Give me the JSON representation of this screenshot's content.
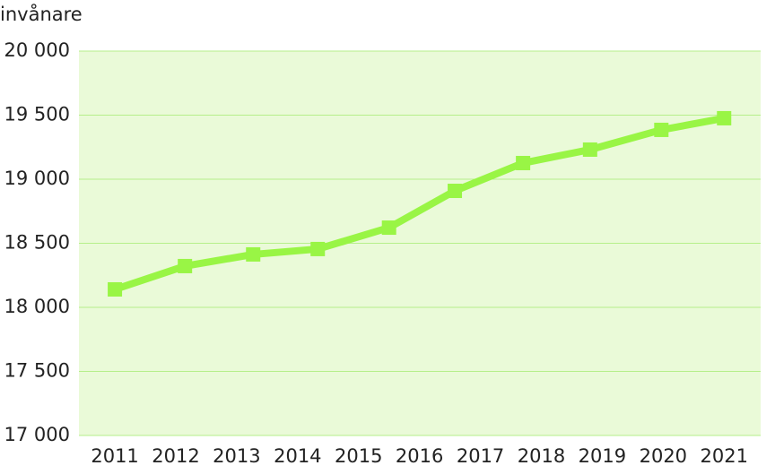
{
  "chart_data": {
    "type": "line",
    "y_label": "invånare",
    "x": [
      2011.0,
      2012.15,
      2013.27,
      2014.33,
      2015.5,
      2016.58,
      2017.7,
      2018.8,
      2019.97,
      2021.0
    ],
    "series": [
      {
        "color": "#99f545",
        "values": [
          18140,
          18322,
          18413,
          18455,
          18622,
          18909,
          19126,
          19231,
          19385,
          19476
        ]
      }
    ],
    "xlim": [
      2010.41,
      2021.6
    ],
    "xticks": [
      2011,
      2012,
      2013,
      2014,
      2015,
      2016,
      2017,
      2018,
      2019,
      2020,
      2021
    ],
    "ylim": [
      17000,
      20000
    ],
    "yticks": [
      {
        "value": 17000,
        "label": "17 000"
      },
      {
        "value": 17500,
        "label": "17 500"
      },
      {
        "value": 18000,
        "label": "18 000"
      },
      {
        "value": 18500,
        "label": "18 500"
      },
      {
        "value": 19000,
        "label": "19 000"
      },
      {
        "value": 19500,
        "label": "19 500"
      },
      {
        "value": 20000,
        "label": "20 000"
      }
    ],
    "grid": true
  }
}
